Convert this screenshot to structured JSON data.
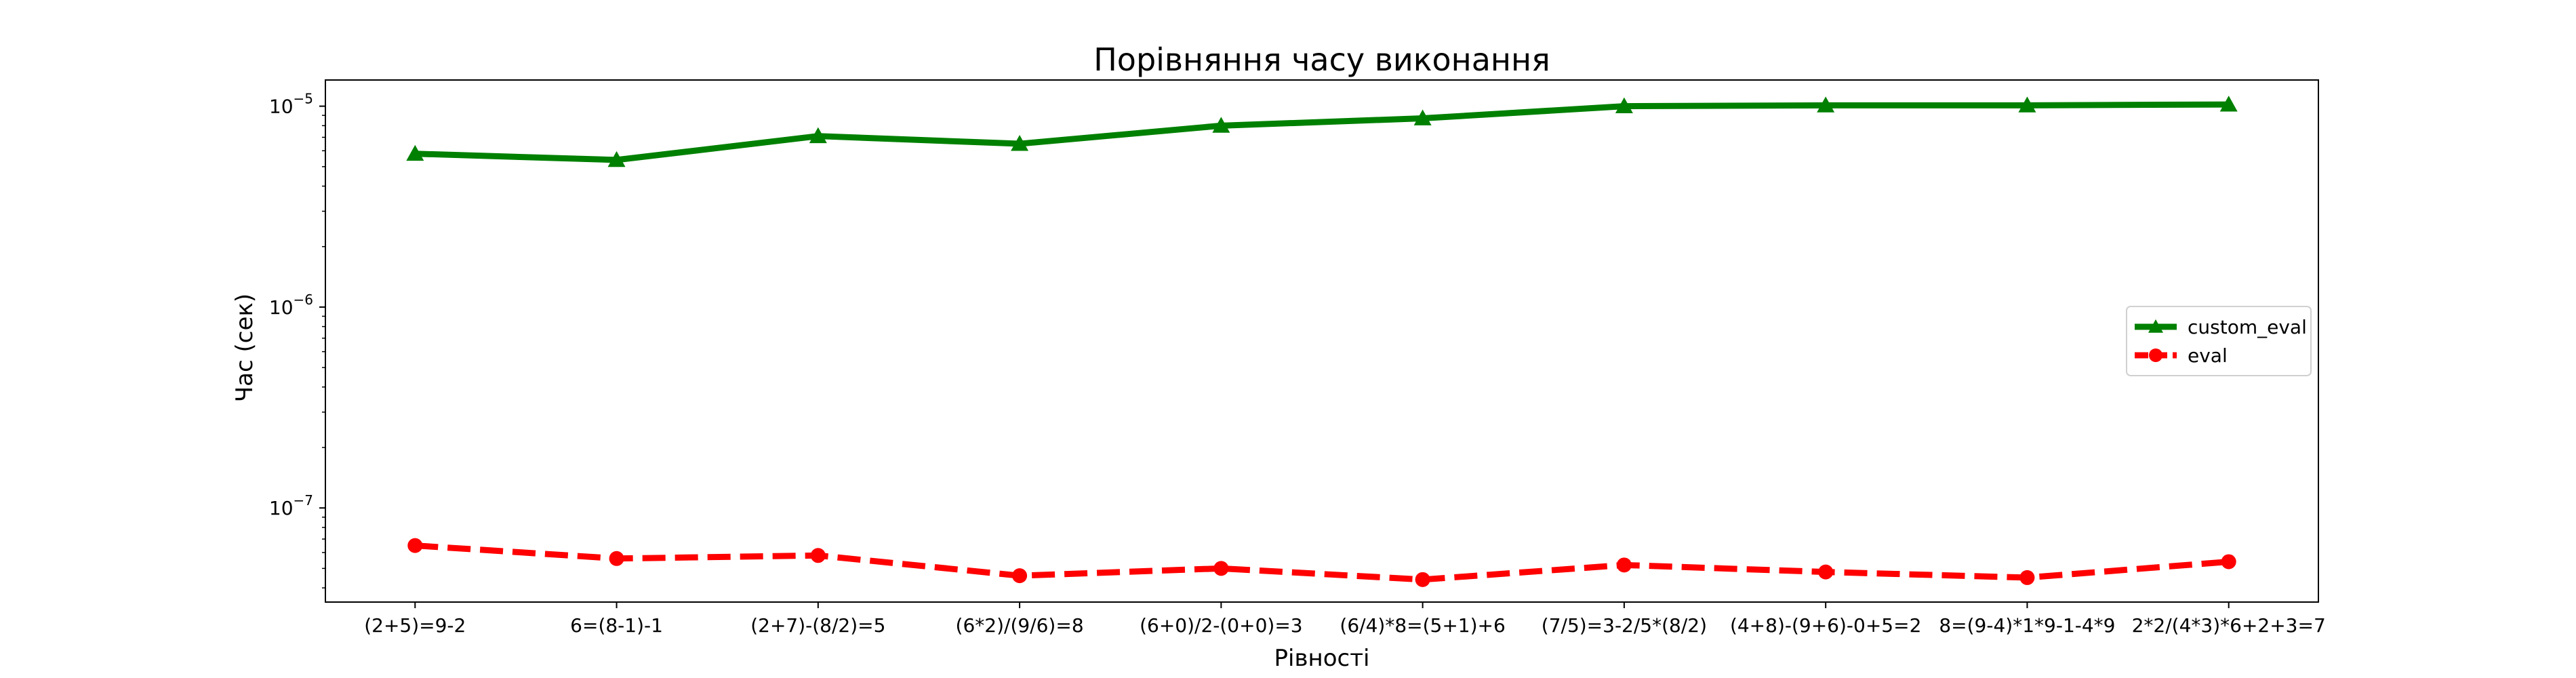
{
  "chart_data": {
    "type": "line",
    "title": "Порівняння часу виконання",
    "xlabel": "Рівності",
    "ylabel": "Час (сек)",
    "y_scale": "log",
    "ylim": [
      3.4e-08,
      1.35e-05
    ],
    "y_ticks": [
      {
        "value": 1e-07,
        "base": "10",
        "exp": "−7"
      },
      {
        "value": 1e-06,
        "base": "10",
        "exp": "−6"
      },
      {
        "value": 1e-05,
        "base": "10",
        "exp": "−5"
      }
    ],
    "grid": false,
    "legend_position": "center-right",
    "categories": [
      "(2+5)=9-2",
      "6=(8-1)-1",
      "(2+7)-(8/2)=5",
      "(6*2)/(9/6)=8",
      "(6+0)/2-(0+0)=3",
      "(6/4)*8=(5+1)+6",
      "(7/5)=3-2/5*(8/2)",
      "(4+8)-(9+6)-0+5=2",
      "8=(9-4)*1*9-1-4*9",
      "2*2/(4*3)*6+2+3=7"
    ],
    "series": [
      {
        "name": "custom_eval",
        "color": "#008000",
        "line_style": "solid",
        "marker": "triangle",
        "values": [
          5.8e-06,
          5.4e-06,
          7.1e-06,
          6.5e-06,
          8e-06,
          8.7e-06,
          1e-05,
          1.01e-05,
          1.01e-05,
          1.02e-05
        ]
      },
      {
        "name": "eval",
        "color": "#ff0000",
        "line_style": "dashed",
        "marker": "circle",
        "values": [
          6.5e-08,
          5.6e-08,
          5.8e-08,
          4.6e-08,
          5e-08,
          4.4e-08,
          5.2e-08,
          4.8e-08,
          4.5e-08,
          5.4e-08
        ]
      }
    ]
  }
}
